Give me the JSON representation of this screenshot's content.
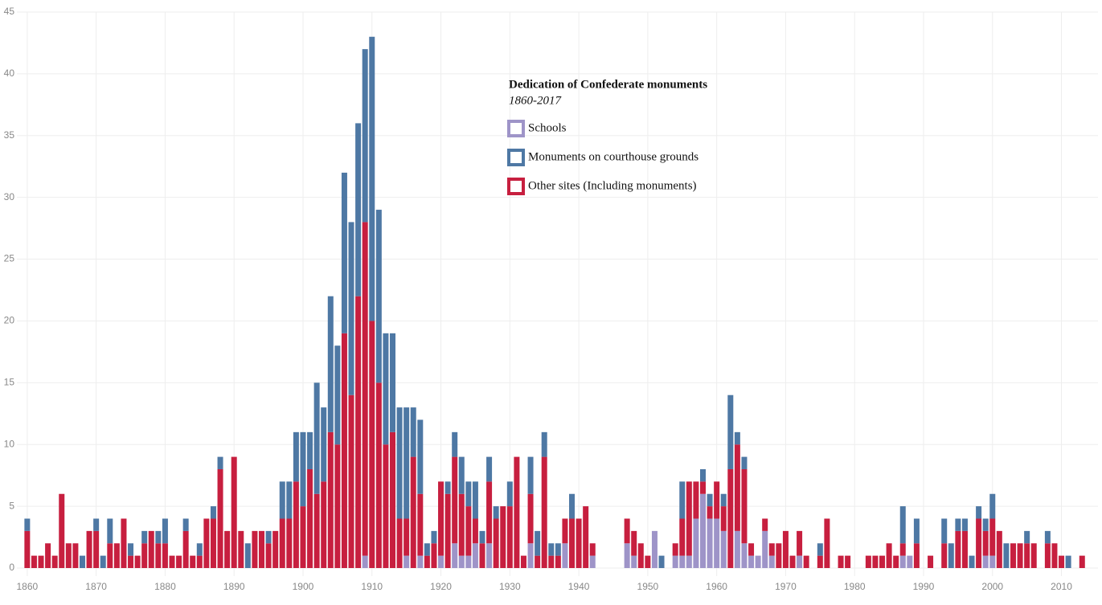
{
  "chart_data": {
    "type": "stacked_bar",
    "legend_title": "Dedication of Confederate monuments",
    "legend_subtitle": "1860-2017",
    "x": [
      1860,
      1861,
      1862,
      1863,
      1864,
      1865,
      1866,
      1867,
      1868,
      1869,
      1870,
      1871,
      1872,
      1873,
      1874,
      1875,
      1876,
      1877,
      1878,
      1879,
      1880,
      1881,
      1882,
      1883,
      1884,
      1885,
      1886,
      1887,
      1888,
      1889,
      1890,
      1891,
      1892,
      1893,
      1894,
      1895,
      1896,
      1897,
      1898,
      1899,
      1900,
      1901,
      1902,
      1903,
      1904,
      1905,
      1906,
      1907,
      1908,
      1909,
      1910,
      1911,
      1912,
      1913,
      1914,
      1915,
      1916,
      1917,
      1918,
      1919,
      1920,
      1921,
      1922,
      1923,
      1924,
      1925,
      1926,
      1927,
      1928,
      1929,
      1930,
      1931,
      1932,
      1933,
      1934,
      1935,
      1936,
      1937,
      1938,
      1939,
      1940,
      1941,
      1942,
      1947,
      1948,
      1949,
      1950,
      1951,
      1952,
      1954,
      1955,
      1956,
      1957,
      1958,
      1959,
      1960,
      1961,
      1962,
      1963,
      1964,
      1965,
      1966,
      1967,
      1968,
      1969,
      1970,
      1971,
      1972,
      1973,
      1975,
      1976,
      1978,
      1979,
      1982,
      1983,
      1984,
      1985,
      1986,
      1987,
      1988,
      1989,
      1991,
      1993,
      1994,
      1995,
      1996,
      1997,
      1998,
      1999,
      2000,
      2001,
      2002,
      2003,
      2004,
      2005,
      2006,
      2008,
      2009,
      2010,
      2011,
      2013
    ],
    "series": [
      {
        "name": "Schools",
        "color": "#9e94c8",
        "values": [
          0,
          0,
          0,
          0,
          0,
          0,
          0,
          0,
          0,
          0,
          0,
          0,
          0,
          0,
          0,
          0,
          0,
          0,
          0,
          0,
          0,
          0,
          0,
          0,
          0,
          0,
          0,
          0,
          0,
          0,
          0,
          0,
          0,
          0,
          0,
          0,
          0,
          0,
          0,
          0,
          0,
          0,
          0,
          0,
          0,
          0,
          0,
          0,
          0,
          1,
          0,
          0,
          0,
          0,
          0,
          1,
          0,
          1,
          0,
          0,
          1,
          0,
          2,
          1,
          1,
          2,
          0,
          2,
          0,
          0,
          0,
          0,
          0,
          2,
          0,
          0,
          0,
          0,
          2,
          0,
          0,
          0,
          1,
          2,
          1,
          0,
          0,
          3,
          0,
          1,
          1,
          1,
          4,
          6,
          4,
          4,
          3,
          0,
          3,
          2,
          1,
          1,
          3,
          1,
          0,
          0,
          0,
          1,
          0,
          0,
          0,
          0,
          0,
          0,
          0,
          0,
          0,
          0,
          1,
          1,
          0,
          0,
          0,
          0,
          0,
          0,
          0,
          0,
          1,
          1,
          0,
          0,
          0,
          0,
          0,
          0,
          0,
          0,
          0,
          0,
          0
        ]
      },
      {
        "name": "Monuments on courthouse grounds",
        "color": "#4e78a4",
        "values": [
          1,
          0,
          0,
          0,
          0,
          0,
          0,
          0,
          1,
          0,
          1,
          1,
          2,
          0,
          0,
          1,
          0,
          1,
          0,
          1,
          2,
          0,
          0,
          1,
          0,
          1,
          0,
          1,
          1,
          0,
          0,
          0,
          2,
          0,
          0,
          1,
          0,
          3,
          3,
          4,
          6,
          3,
          9,
          6,
          11,
          8,
          13,
          14,
          14,
          14,
          23,
          14,
          9,
          8,
          9,
          9,
          4,
          6,
          1,
          1,
          0,
          1,
          2,
          3,
          2,
          3,
          1,
          2,
          1,
          0,
          2,
          0,
          0,
          3,
          2,
          2,
          1,
          1,
          0,
          2,
          0,
          0,
          0,
          0,
          0,
          0,
          0,
          0,
          1,
          0,
          3,
          0,
          0,
          1,
          1,
          0,
          1,
          6,
          1,
          1,
          0,
          0,
          0,
          0,
          0,
          0,
          0,
          0,
          0,
          1,
          0,
          0,
          0,
          0,
          0,
          0,
          0,
          0,
          3,
          0,
          2,
          0,
          2,
          2,
          1,
          1,
          1,
          1,
          1,
          2,
          0,
          2,
          0,
          0,
          1,
          0,
          1,
          0,
          0,
          1,
          0
        ]
      },
      {
        "name": "Other sites (Including monuments)",
        "color": "#c71f3f",
        "values": [
          3,
          1,
          1,
          2,
          1,
          6,
          2,
          2,
          0,
          3,
          3,
          0,
          2,
          2,
          4,
          1,
          1,
          2,
          3,
          2,
          2,
          1,
          1,
          3,
          1,
          1,
          4,
          4,
          8,
          3,
          9,
          3,
          0,
          3,
          3,
          2,
          3,
          4,
          4,
          7,
          5,
          8,
          6,
          7,
          11,
          10,
          19,
          14,
          22,
          27,
          20,
          15,
          10,
          11,
          4,
          3,
          9,
          5,
          1,
          2,
          6,
          6,
          7,
          5,
          4,
          2,
          2,
          5,
          4,
          5,
          5,
          9,
          1,
          4,
          1,
          9,
          1,
          1,
          2,
          4,
          4,
          5,
          1,
          2,
          2,
          2,
          1,
          0,
          0,
          1,
          3,
          6,
          3,
          1,
          1,
          3,
          2,
          8,
          7,
          6,
          1,
          0,
          1,
          1,
          2,
          3,
          1,
          2,
          1,
          1,
          4,
          1,
          1,
          1,
          1,
          1,
          2,
          1,
          1,
          0,
          2,
          1,
          2,
          0,
          3,
          3,
          0,
          4,
          2,
          3,
          3,
          0,
          2,
          2,
          2,
          2,
          2,
          2,
          1,
          0,
          1
        ]
      }
    ],
    "xlim": [
      1858.5,
      2015.3
    ],
    "xticks": [
      1860,
      1870,
      1880,
      1890,
      1900,
      1910,
      1920,
      1930,
      1940,
      1950,
      1960,
      1970,
      1980,
      1990,
      2000,
      2010
    ],
    "ylim": [
      0,
      45
    ],
    "yticks": [
      0,
      5,
      10,
      15,
      20,
      25,
      30,
      35,
      40,
      45
    ],
    "grid": true
  }
}
